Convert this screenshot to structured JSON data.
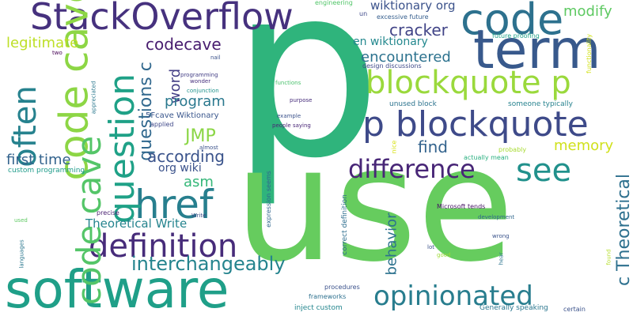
{
  "words": {
    "p": {
      "text": "p",
      "color": "#2fb47c"
    },
    "use": {
      "text": "use",
      "color": "#66cc5e"
    },
    "software": {
      "text": "software",
      "color": "#1f9f88"
    },
    "stackoverflow": {
      "text": "StackOverflow",
      "color": "#46317e"
    },
    "code": {
      "text": "code",
      "color": "#2d718e"
    },
    "term": {
      "text": "term",
      "color": "#38598c"
    },
    "blockquote_p": {
      "text": "blockquote p",
      "color": "#9ad93c"
    },
    "p_blockquote": {
      "text": "p blockquote",
      "color": "#3e4a89"
    },
    "code_cave": {
      "text": "code cave",
      "color": "#8dd645"
    },
    "question": {
      "text": "question",
      "color": "#1fa187"
    },
    "often": {
      "text": "often",
      "color": "#26828e"
    },
    "href": {
      "text": "href",
      "color": "#277f8e"
    },
    "definition": {
      "text": "definition",
      "color": "#472c7a"
    },
    "difference": {
      "text": "difference",
      "color": "#482677"
    },
    "see": {
      "text": "see",
      "color": "#21918c"
    },
    "opinionated": {
      "text": "opinionated",
      "color": "#287d8e"
    },
    "interchangeably": {
      "text": "interchangeably",
      "color": "#25848e"
    },
    "code_cave_small": {
      "text": "code cave",
      "color": "#54c568"
    },
    "legitimate": {
      "text": "legitimate",
      "color": "#bddf26"
    },
    "codecave": {
      "text": "codecave",
      "color": "#481d6f"
    },
    "cracker": {
      "text": "cracker",
      "color": "#414487"
    },
    "encountered": {
      "text": "encountered",
      "color": "#2c728e"
    },
    "modify": {
      "text": "modify",
      "color": "#5ec962"
    },
    "wiktionary_org": {
      "text": "wiktionary org",
      "color": "#3b528b"
    },
    "en_wiktionary": {
      "text": "en wiktionary",
      "color": "#23888e"
    },
    "program": {
      "text": "program",
      "color": "#2a788e"
    },
    "word": {
      "text": "word",
      "color": "#433e85"
    },
    "questions_c": {
      "text": "questions c",
      "color": "#31688e"
    },
    "jmp": {
      "text": "JMP",
      "color": "#8bd646"
    },
    "according": {
      "text": "according",
      "color": "#3a538b"
    },
    "first_time": {
      "text": "first time",
      "color": "#33638d"
    },
    "org_wiki": {
      "text": "org wiki",
      "color": "#3b528b"
    },
    "asm": {
      "text": "asm",
      "color": "#35b779"
    },
    "find": {
      "text": "find",
      "color": "#33638d"
    },
    "memory": {
      "text": "memory",
      "color": "#d0e11c"
    },
    "theoretical_write": {
      "text": "Theoretical Write",
      "color": "#25848e"
    },
    "behavior": {
      "text": "behavior",
      "color": "#2c728e"
    },
    "c_theoretical": {
      "text": "c Theoretical",
      "color": "#2d708e"
    },
    "engineering": {
      "text": "engineering",
      "color": "#52c569"
    },
    "un": {
      "text": "un",
      "color": "#3e4989"
    },
    "excessive_future": {
      "text": "excessive future",
      "color": "#355e8d"
    },
    "future_proofing": {
      "text": "future proofing",
      "color": "#1fa088"
    },
    "design_discussions": {
      "text": "design discussions",
      "color": "#3e4989"
    },
    "functionality": {
      "text": "functionality",
      "color": "#d2e21b"
    },
    "unused_block": {
      "text": "unused block",
      "color": "#2c738e"
    },
    "someone_typically": {
      "text": "someone typically",
      "color": "#26828e"
    },
    "probably": {
      "text": "probably",
      "color": "#a8db34"
    },
    "actually_mean": {
      "text": "actually mean",
      "color": "#29af7f"
    },
    "nice": {
      "text": "nice",
      "color": "#d8e219"
    },
    "two": {
      "text": "two",
      "color": "#440154"
    },
    "nail": {
      "text": "nail",
      "color": "#3b528b"
    },
    "programming": {
      "text": "programming",
      "color": "#433e85"
    },
    "wonder": {
      "text": "wonder",
      "color": "#472f7d"
    },
    "conjunction": {
      "text": "conjunction",
      "color": "#20928c"
    },
    "appreciated": {
      "text": "appreciated",
      "color": "#2a788e"
    },
    "fivefcave": {
      "text": "5Fcave Wiktionary",
      "color": "#39568c"
    },
    "applied": {
      "text": "applied",
      "color": "#3f4889"
    },
    "functions": {
      "text": "functions",
      "color": "#4ac16d"
    },
    "example": {
      "text": "example",
      "color": "#3b528b"
    },
    "purpose": {
      "text": "purpose",
      "color": "#472d7b"
    },
    "people_saying": {
      "text": "people saying",
      "color": "#482576"
    },
    "almost": {
      "text": "almost",
      "color": "#3b528b"
    },
    "custom_programming": {
      "text": "custom programming",
      "color": "#1e9b8a"
    },
    "write": {
      "text": "Write",
      "color": "#3d4e8a"
    },
    "precise": {
      "text": "precise",
      "color": "#481f70"
    },
    "expression_seems": {
      "text": "expression seems",
      "color": "#31668e"
    },
    "correct_definition": {
      "text": "correct definition",
      "color": "#2e6e8e"
    },
    "used": {
      "text": "used",
      "color": "#5ec962"
    },
    "languages": {
      "text": "languages",
      "color": "#2a778e"
    },
    "microsoft_tends": {
      "text": "Microsoft tends",
      "color": "#471365"
    },
    "development": {
      "text": "development",
      "color": "#31678e"
    },
    "wrong": {
      "text": "wrong",
      "color": "#3a538b"
    },
    "lot": {
      "text": "lot",
      "color": "#3b528b"
    },
    "good": {
      "text": "good",
      "color": "#a0da39"
    },
    "hear": {
      "text": "hear",
      "color": "#2c738e"
    },
    "found": {
      "text": "found",
      "color": "#b5de2b"
    },
    "procedures": {
      "text": "procedures",
      "color": "#3b528b"
    },
    "frameworks": {
      "text": "frameworks",
      "color": "#2d708e"
    },
    "inject_custom": {
      "text": "inject custom",
      "color": "#24868e"
    },
    "generally_speaking": {
      "text": "Generally speaking",
      "color": "#2a768e"
    },
    "certain": {
      "text": "certain",
      "color": "#3b528b"
    }
  }
}
